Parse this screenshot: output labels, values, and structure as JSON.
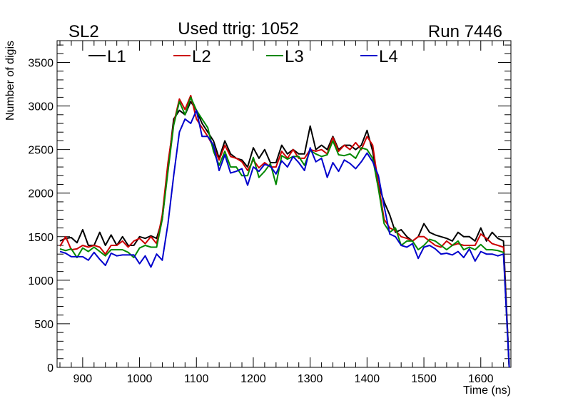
{
  "header": {
    "left_label": "SL2",
    "center_label": "Used ttrig: 1052",
    "right_label": "Run 7446"
  },
  "chart_data": {
    "type": "line",
    "xlabel": "Time (ns)",
    "ylabel": "Number of digis",
    "xlim": [
      855,
      1653
    ],
    "ylim": [
      0,
      3750
    ],
    "x_ticks": [
      900,
      1000,
      1100,
      1200,
      1300,
      1400,
      1500,
      1600
    ],
    "y_ticks": [
      0,
      500,
      1000,
      1500,
      2000,
      2500,
      3000,
      3500
    ],
    "grid": false,
    "legend_position": "top",
    "x": [
      860,
      870,
      880,
      890,
      900,
      910,
      920,
      930,
      940,
      950,
      960,
      970,
      980,
      990,
      1000,
      1010,
      1020,
      1030,
      1040,
      1050,
      1060,
      1070,
      1080,
      1090,
      1100,
      1110,
      1120,
      1130,
      1140,
      1150,
      1160,
      1170,
      1180,
      1190,
      1200,
      1210,
      1220,
      1230,
      1240,
      1250,
      1260,
      1270,
      1280,
      1290,
      1300,
      1310,
      1320,
      1330,
      1340,
      1350,
      1360,
      1370,
      1380,
      1390,
      1400,
      1410,
      1420,
      1430,
      1440,
      1450,
      1460,
      1470,
      1480,
      1490,
      1500,
      1510,
      1520,
      1530,
      1540,
      1550,
      1560,
      1570,
      1580,
      1590,
      1600,
      1610,
      1620,
      1630,
      1640,
      1650
    ],
    "series": [
      {
        "name": "L1",
        "color": "#000000",
        "values": [
          1450,
          1480,
          1490,
          1430,
          1580,
          1400,
          1400,
          1550,
          1400,
          1520,
          1400,
          1500,
          1400,
          1400,
          1500,
          1480,
          1510,
          1480,
          1700,
          2300,
          2850,
          2950,
          2900,
          3050,
          2950,
          2800,
          2700,
          2600,
          2400,
          2600,
          2450,
          2400,
          2380,
          2300,
          2520,
          2400,
          2500,
          2350,
          2350,
          2550,
          2450,
          2500,
          2450,
          2450,
          2770,
          2500,
          2550,
          2500,
          2650,
          2500,
          2550,
          2550,
          2500,
          2550,
          2720,
          2480,
          2100,
          1900,
          1750,
          1550,
          1580,
          1500,
          1450,
          1500,
          1650,
          1550,
          1520,
          1500,
          1480,
          1450,
          1550,
          1500,
          1500,
          1450,
          1600,
          1450,
          1550,
          1480,
          1450,
          0
        ]
      },
      {
        "name": "L2",
        "color": "#cc0000",
        "values": [
          1390,
          1500,
          1350,
          1360,
          1400,
          1380,
          1400,
          1380,
          1300,
          1400,
          1400,
          1450,
          1380,
          1450,
          1480,
          1420,
          1500,
          1420,
          1750,
          2350,
          2800,
          3080,
          2960,
          3120,
          2850,
          2750,
          2650,
          2530,
          2380,
          2550,
          2420,
          2400,
          2360,
          2260,
          2380,
          2290,
          2350,
          2300,
          2300,
          2480,
          2400,
          2500,
          2400,
          2400,
          2500,
          2480,
          2500,
          2450,
          2640,
          2480,
          2550,
          2500,
          2580,
          2500,
          2650,
          2550,
          2100,
          1700,
          1600,
          1570,
          1500,
          1480,
          1450,
          1500,
          1500,
          1450,
          1400,
          1380,
          1450,
          1400,
          1420,
          1400,
          1400,
          1400,
          1530,
          1480,
          1420,
          1400,
          1380,
          0
        ]
      },
      {
        "name": "L3",
        "color": "#008800",
        "values": [
          1360,
          1340,
          1360,
          1260,
          1370,
          1330,
          1380,
          1330,
          1280,
          1350,
          1350,
          1350,
          1320,
          1260,
          1370,
          1400,
          1380,
          1380,
          1700,
          2250,
          2780,
          3050,
          2900,
          3100,
          2950,
          2850,
          2750,
          2480,
          2320,
          2480,
          2300,
          2300,
          2200,
          2200,
          2410,
          2180,
          2250,
          2340,
          2100,
          2430,
          2390,
          2420,
          2420,
          2320,
          2490,
          2450,
          2420,
          2440,
          2600,
          2440,
          2430,
          2450,
          2400,
          2520,
          2500,
          2400,
          2050,
          1650,
          1550,
          1600,
          1400,
          1450,
          1450,
          1350,
          1400,
          1470,
          1450,
          1400,
          1350,
          1400,
          1450,
          1350,
          1380,
          1350,
          1410,
          1350,
          1350,
          1340,
          1320,
          0
        ]
      },
      {
        "name": "L4",
        "color": "#0000cc",
        "values": [
          1330,
          1310,
          1270,
          1270,
          1270,
          1230,
          1320,
          1240,
          1170,
          1310,
          1280,
          1290,
          1290,
          1290,
          1190,
          1280,
          1150,
          1300,
          1230,
          1650,
          2200,
          2700,
          2850,
          2800,
          2950,
          2650,
          2650,
          2550,
          2260,
          2440,
          2230,
          2250,
          2280,
          2090,
          2300,
          2250,
          2330,
          2310,
          2220,
          2370,
          2300,
          2420,
          2350,
          2260,
          2520,
          2360,
          2400,
          2180,
          2350,
          2250,
          2380,
          2340,
          2280,
          2360,
          2460,
          2360,
          2200,
          1850,
          1530,
          1500,
          1400,
          1380,
          1420,
          1250,
          1380,
          1400,
          1360,
          1300,
          1310,
          1290,
          1330,
          1260,
          1360,
          1220,
          1330,
          1300,
          1300,
          1280,
          1300,
          0
        ]
      }
    ]
  }
}
